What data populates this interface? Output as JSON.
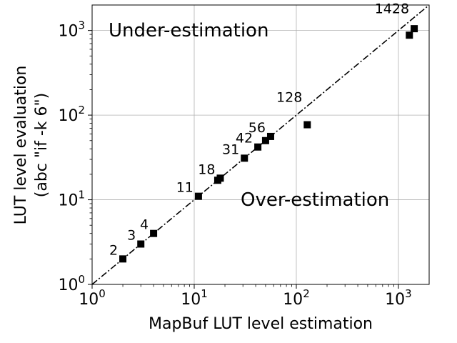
{
  "chart_data": {
    "type": "scatter",
    "title": "",
    "xlabel": "MapBuf LUT level estimation",
    "ylabel_line1": "LUT level evaluation",
    "ylabel_line2": "(abc \"if -k 6\")",
    "xscale": "log",
    "yscale": "log",
    "xlim": [
      1,
      2000
    ],
    "ylim": [
      1,
      2000
    ],
    "grid": true,
    "x_ticks": [
      {
        "value": 1,
        "base": "10",
        "exp": "0"
      },
      {
        "value": 10,
        "base": "10",
        "exp": "1"
      },
      {
        "value": 100,
        "base": "10",
        "exp": "2"
      },
      {
        "value": 1000,
        "base": "10",
        "exp": "3"
      }
    ],
    "y_ticks": [
      {
        "value": 1,
        "base": "10",
        "exp": "0"
      },
      {
        "value": 10,
        "base": "10",
        "exp": "1"
      },
      {
        "value": 100,
        "base": "10",
        "exp": "2"
      },
      {
        "value": 1000,
        "base": "10",
        "exp": "3"
      }
    ],
    "points": [
      {
        "x": 2,
        "y": 2
      },
      {
        "x": 3,
        "y": 3
      },
      {
        "x": 4,
        "y": 4
      },
      {
        "x": 11,
        "y": 11
      },
      {
        "x": 17,
        "y": 17
      },
      {
        "x": 18,
        "y": 18
      },
      {
        "x": 31,
        "y": 31
      },
      {
        "x": 42,
        "y": 42
      },
      {
        "x": 50,
        "y": 50
      },
      {
        "x": 56,
        "y": 56
      },
      {
        "x": 128,
        "y": 77
      },
      {
        "x": 1280,
        "y": 880
      },
      {
        "x": 1428,
        "y": 1050
      }
    ],
    "point_labels": [
      {
        "text": "2",
        "x": 2,
        "y": 2
      },
      {
        "text": "3",
        "x": 3,
        "y": 3
      },
      {
        "text": "4",
        "x": 4,
        "y": 4
      },
      {
        "text": "11",
        "x": 11,
        "y": 11
      },
      {
        "text": "18",
        "x": 18,
        "y": 18
      },
      {
        "text": "31",
        "x": 31,
        "y": 31
      },
      {
        "text": "42",
        "x": 42,
        "y": 42
      },
      {
        "text": "56",
        "x": 56,
        "y": 56
      },
      {
        "text": "128",
        "x": 128,
        "y": 128
      },
      {
        "text": "1428",
        "x": 1428,
        "y": 1428
      }
    ],
    "reference_line": {
      "style": "dash-dot",
      "from": [
        1,
        1
      ],
      "to": [
        2000,
        2000
      ]
    },
    "annotations": [
      "Under-estimation",
      "Over-estimation"
    ]
  }
}
